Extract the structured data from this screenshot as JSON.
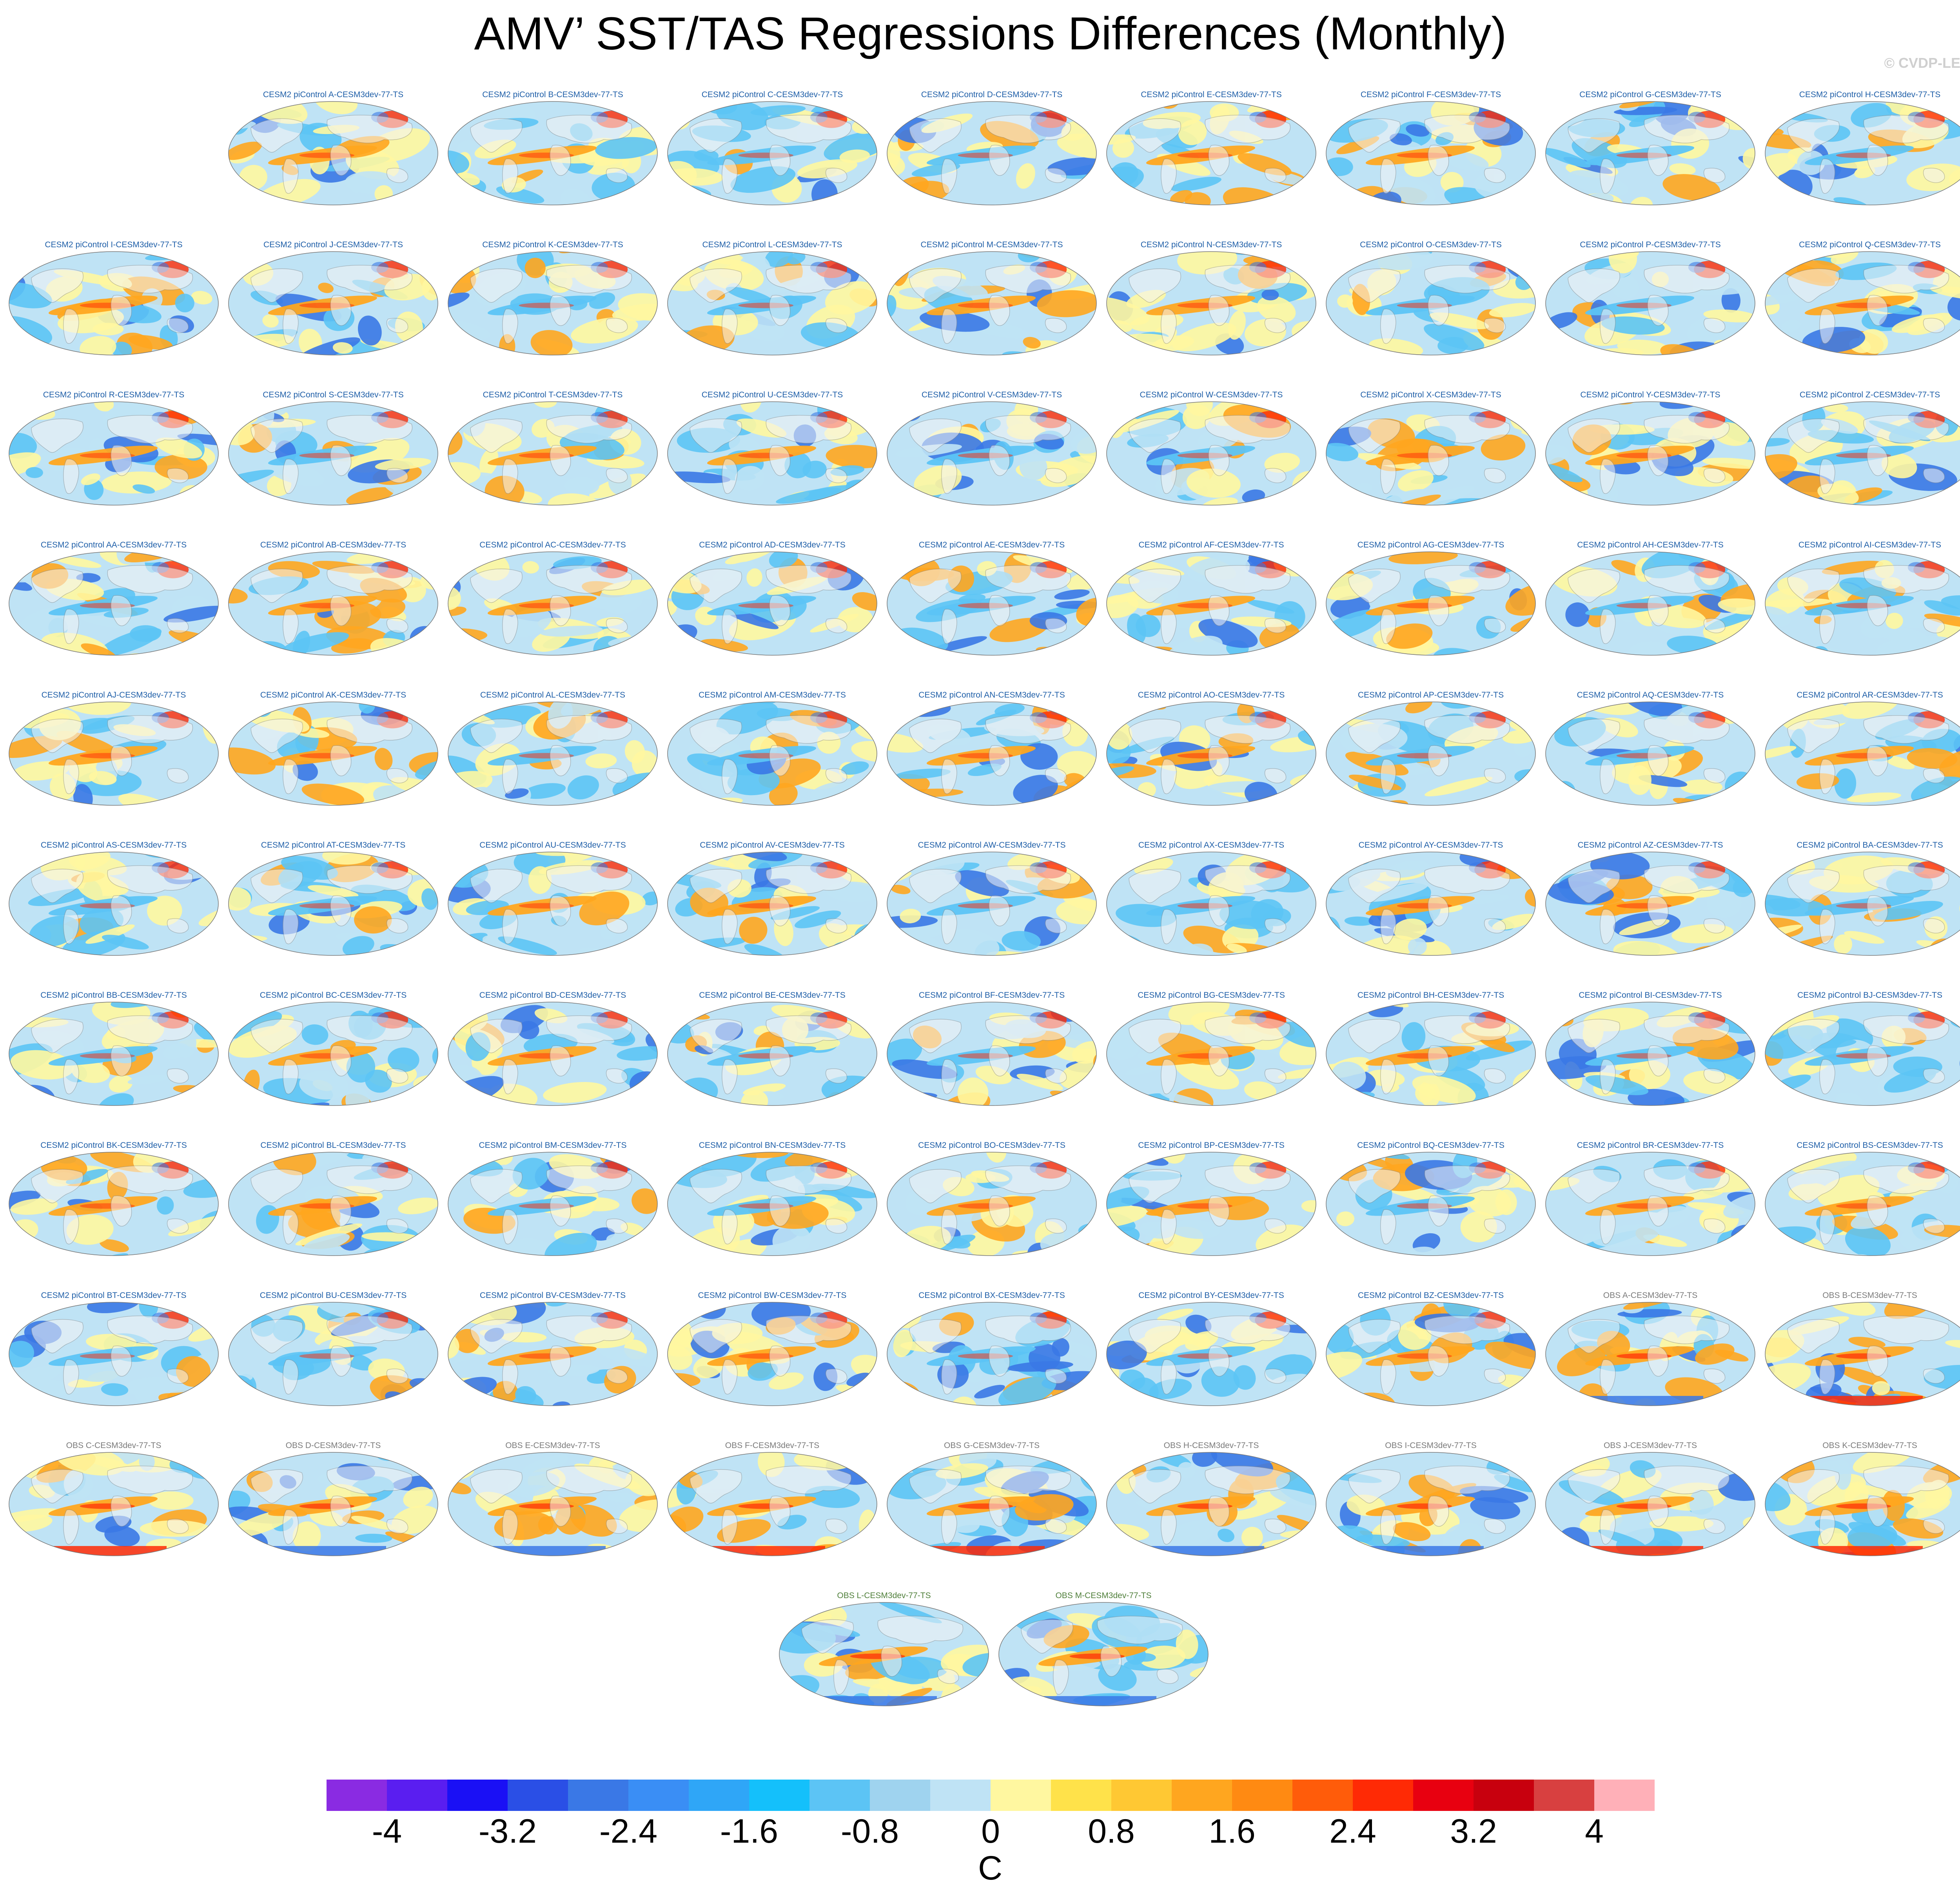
{
  "title": "AMV’ SST/TAS Regressions Differences (Monthly)",
  "watermark": "© CVDP-LE",
  "panels": [
    {
      "label": "CESM2 piControl A-CESM3dev-77-TS",
      "group": "model"
    },
    {
      "label": "CESM2 piControl B-CESM3dev-77-TS",
      "group": "model"
    },
    {
      "label": "CESM2 piControl C-CESM3dev-77-TS",
      "group": "model"
    },
    {
      "label": "CESM2 piControl D-CESM3dev-77-TS",
      "group": "model"
    },
    {
      "label": "CESM2 piControl E-CESM3dev-77-TS",
      "group": "model"
    },
    {
      "label": "CESM2 piControl F-CESM3dev-77-TS",
      "group": "model"
    },
    {
      "label": "CESM2 piControl G-CESM3dev-77-TS",
      "group": "model"
    },
    {
      "label": "CESM2 piControl H-CESM3dev-77-TS",
      "group": "model"
    },
    {
      "label": "CESM2 piControl I-CESM3dev-77-TS",
      "group": "model"
    },
    {
      "label": "CESM2 piControl J-CESM3dev-77-TS",
      "group": "model"
    },
    {
      "label": "CESM2 piControl K-CESM3dev-77-TS",
      "group": "model"
    },
    {
      "label": "CESM2 piControl L-CESM3dev-77-TS",
      "group": "model"
    },
    {
      "label": "CESM2 piControl M-CESM3dev-77-TS",
      "group": "model"
    },
    {
      "label": "CESM2 piControl N-CESM3dev-77-TS",
      "group": "model"
    },
    {
      "label": "CESM2 piControl O-CESM3dev-77-TS",
      "group": "model"
    },
    {
      "label": "CESM2 piControl P-CESM3dev-77-TS",
      "group": "model"
    },
    {
      "label": "CESM2 piControl Q-CESM3dev-77-TS",
      "group": "model"
    },
    {
      "label": "CESM2 piControl R-CESM3dev-77-TS",
      "group": "model"
    },
    {
      "label": "CESM2 piControl S-CESM3dev-77-TS",
      "group": "model"
    },
    {
      "label": "CESM2 piControl T-CESM3dev-77-TS",
      "group": "model"
    },
    {
      "label": "CESM2 piControl U-CESM3dev-77-TS",
      "group": "model"
    },
    {
      "label": "CESM2 piControl V-CESM3dev-77-TS",
      "group": "model"
    },
    {
      "label": "CESM2 piControl W-CESM3dev-77-TS",
      "group": "model"
    },
    {
      "label": "CESM2 piControl X-CESM3dev-77-TS",
      "group": "model"
    },
    {
      "label": "CESM2 piControl Y-CESM3dev-77-TS",
      "group": "model"
    },
    {
      "label": "CESM2 piControl Z-CESM3dev-77-TS",
      "group": "model"
    },
    {
      "label": "CESM2 piControl AA-CESM3dev-77-TS",
      "group": "model"
    },
    {
      "label": "CESM2 piControl AB-CESM3dev-77-TS",
      "group": "model"
    },
    {
      "label": "CESM2 piControl AC-CESM3dev-77-TS",
      "group": "model"
    },
    {
      "label": "CESM2 piControl AD-CESM3dev-77-TS",
      "group": "model"
    },
    {
      "label": "CESM2 piControl AE-CESM3dev-77-TS",
      "group": "model"
    },
    {
      "label": "CESM2 piControl AF-CESM3dev-77-TS",
      "group": "model"
    },
    {
      "label": "CESM2 piControl AG-CESM3dev-77-TS",
      "group": "model"
    },
    {
      "label": "CESM2 piControl AH-CESM3dev-77-TS",
      "group": "model"
    },
    {
      "label": "CESM2 piControl AI-CESM3dev-77-TS",
      "group": "model"
    },
    {
      "label": "CESM2 piControl AJ-CESM3dev-77-TS",
      "group": "model"
    },
    {
      "label": "CESM2 piControl AK-CESM3dev-77-TS",
      "group": "model"
    },
    {
      "label": "CESM2 piControl AL-CESM3dev-77-TS",
      "group": "model"
    },
    {
      "label": "CESM2 piControl AM-CESM3dev-77-TS",
      "group": "model"
    },
    {
      "label": "CESM2 piControl AN-CESM3dev-77-TS",
      "group": "model"
    },
    {
      "label": "CESM2 piControl AO-CESM3dev-77-TS",
      "group": "model"
    },
    {
      "label": "CESM2 piControl AP-CESM3dev-77-TS",
      "group": "model"
    },
    {
      "label": "CESM2 piControl AQ-CESM3dev-77-TS",
      "group": "model"
    },
    {
      "label": "CESM2 piControl AR-CESM3dev-77-TS",
      "group": "model"
    },
    {
      "label": "CESM2 piControl AS-CESM3dev-77-TS",
      "group": "model"
    },
    {
      "label": "CESM2 piControl AT-CESM3dev-77-TS",
      "group": "model"
    },
    {
      "label": "CESM2 piControl AU-CESM3dev-77-TS",
      "group": "model"
    },
    {
      "label": "CESM2 piControl AV-CESM3dev-77-TS",
      "group": "model"
    },
    {
      "label": "CESM2 piControl AW-CESM3dev-77-TS",
      "group": "model"
    },
    {
      "label": "CESM2 piControl AX-CESM3dev-77-TS",
      "group": "model"
    },
    {
      "label": "CESM2 piControl AY-CESM3dev-77-TS",
      "group": "model"
    },
    {
      "label": "CESM2 piControl AZ-CESM3dev-77-TS",
      "group": "model"
    },
    {
      "label": "CESM2 piControl BA-CESM3dev-77-TS",
      "group": "model"
    },
    {
      "label": "CESM2 piControl BB-CESM3dev-77-TS",
      "group": "model"
    },
    {
      "label": "CESM2 piControl BC-CESM3dev-77-TS",
      "group": "model"
    },
    {
      "label": "CESM2 piControl BD-CESM3dev-77-TS",
      "group": "model"
    },
    {
      "label": "CESM2 piControl BE-CESM3dev-77-TS",
      "group": "model"
    },
    {
      "label": "CESM2 piControl BF-CESM3dev-77-TS",
      "group": "model"
    },
    {
      "label": "CESM2 piControl BG-CESM3dev-77-TS",
      "group": "model"
    },
    {
      "label": "CESM2 piControl BH-CESM3dev-77-TS",
      "group": "model"
    },
    {
      "label": "CESM2 piControl BI-CESM3dev-77-TS",
      "group": "model"
    },
    {
      "label": "CESM2 piControl BJ-CESM3dev-77-TS",
      "group": "model"
    },
    {
      "label": "CESM2 piControl BK-CESM3dev-77-TS",
      "group": "model"
    },
    {
      "label": "CESM2 piControl BL-CESM3dev-77-TS",
      "group": "model"
    },
    {
      "label": "CESM2 piControl BM-CESM3dev-77-TS",
      "group": "model"
    },
    {
      "label": "CESM2 piControl BN-CESM3dev-77-TS",
      "group": "model"
    },
    {
      "label": "CESM2 piControl BO-CESM3dev-77-TS",
      "group": "model"
    },
    {
      "label": "CESM2 piControl BP-CESM3dev-77-TS",
      "group": "model"
    },
    {
      "label": "CESM2 piControl BQ-CESM3dev-77-TS",
      "group": "model"
    },
    {
      "label": "CESM2 piControl BR-CESM3dev-77-TS",
      "group": "model"
    },
    {
      "label": "CESM2 piControl BS-CESM3dev-77-TS",
      "group": "model"
    },
    {
      "label": "CESM2 piControl BT-CESM3dev-77-TS",
      "group": "model"
    },
    {
      "label": "CESM2 piControl BU-CESM3dev-77-TS",
      "group": "model"
    },
    {
      "label": "CESM2 piControl BV-CESM3dev-77-TS",
      "group": "model"
    },
    {
      "label": "CESM2 piControl BW-CESM3dev-77-TS",
      "group": "model"
    },
    {
      "label": "CESM2 piControl BX-CESM3dev-77-TS",
      "group": "model"
    },
    {
      "label": "CESM2 piControl BY-CESM3dev-77-TS",
      "group": "model"
    },
    {
      "label": "CESM2 piControl BZ-CESM3dev-77-TS",
      "group": "model"
    },
    {
      "label": "OBS A-CESM3dev-77-TS",
      "group": "obs"
    },
    {
      "label": "OBS B-CESM3dev-77-TS",
      "group": "obs"
    },
    {
      "label": "OBS C-CESM3dev-77-TS",
      "group": "obs"
    },
    {
      "label": "OBS D-CESM3dev-77-TS",
      "group": "obs"
    },
    {
      "label": "OBS E-CESM3dev-77-TS",
      "group": "obs"
    },
    {
      "label": "OBS F-CESM3dev-77-TS",
      "group": "obs"
    },
    {
      "label": "OBS G-CESM3dev-77-TS",
      "group": "obs"
    },
    {
      "label": "OBS H-CESM3dev-77-TS",
      "group": "obs"
    },
    {
      "label": "OBS I-CESM3dev-77-TS",
      "group": "obs"
    },
    {
      "label": "OBS J-CESM3dev-77-TS",
      "group": "obs"
    },
    {
      "label": "OBS K-CESM3dev-77-TS",
      "group": "obs"
    },
    {
      "label": "OBS L-CESM3dev-77-TS",
      "group": "obs-extra"
    },
    {
      "label": "OBS M-CESM3dev-77-TS",
      "group": "obs-extra"
    }
  ],
  "panel_title_colors": {
    "model": "#1f5fa8",
    "obs": "#7a7a7a",
    "obs-extra": "#4f7f3a"
  },
  "colorbar": {
    "colors": [
      "#8a2be2",
      "#5a1ef0",
      "#1a10f5",
      "#2a4fe6",
      "#3a78e6",
      "#3a8ef5",
      "#2fa6f7",
      "#14c0fb",
      "#5cc4f5",
      "#9fd3ef",
      "#bfe3f5",
      "#fff7a0",
      "#ffe24a",
      "#ffc833",
      "#ffa61f",
      "#ff8a12",
      "#ff5c0a",
      "#ff2a05",
      "#e80010",
      "#c8000e",
      "#d84040",
      "#ffb0b8"
    ],
    "labels": [
      "-4",
      "-3.2",
      "-2.4",
      "-1.6",
      "-0.8",
      "0",
      "0.8",
      "1.6",
      "2.4",
      "3.2",
      "4"
    ],
    "unit": "C"
  },
  "map_palette": {
    "ocean_light_blue": "#bfe3f5",
    "ocean_blue": "#5cc4f5",
    "ocean_yellow": "#fff7a0",
    "ocean_orange": "#ffa61f",
    "ocean_red": "#ff2a05",
    "ocean_dark_blue": "#3a78e6",
    "land": "#f4f4f4",
    "coast": "#8a8a8a"
  }
}
